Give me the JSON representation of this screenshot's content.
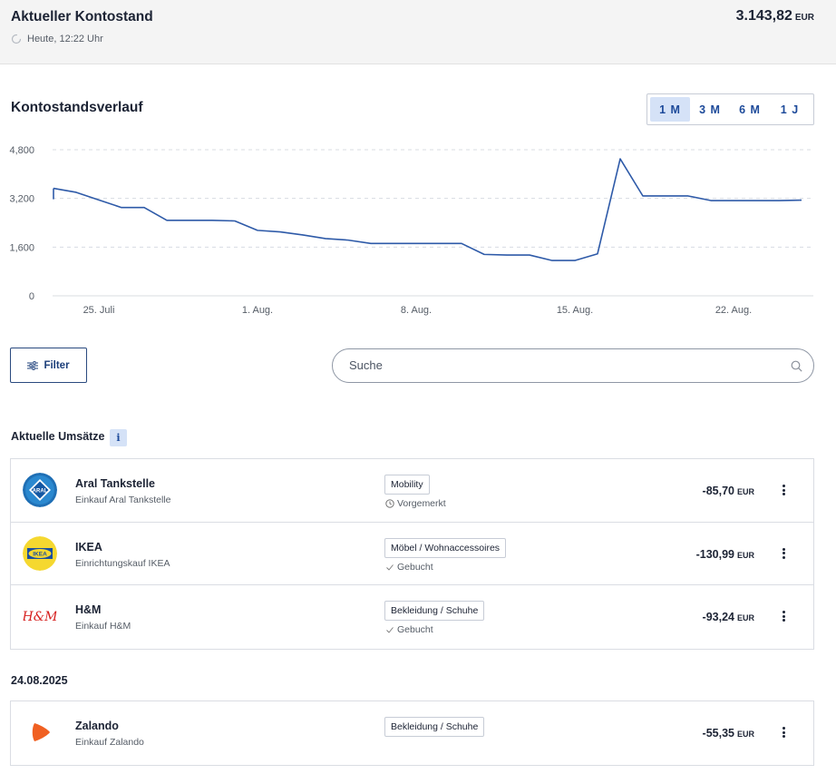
{
  "balance": {
    "title": "Aktueller Kontostand",
    "timestamp": "Heute, 12:22 Uhr",
    "amount": "3.143,82",
    "currency": "EUR"
  },
  "chart_section": {
    "title": "Kontostandsverlauf",
    "ranges": [
      {
        "label": "1 M",
        "active": true
      },
      {
        "label": "3 M",
        "active": false
      },
      {
        "label": "6 M",
        "active": false
      },
      {
        "label": "1 J",
        "active": false
      }
    ]
  },
  "chart_data": {
    "type": "line",
    "x": [
      "23. Juli",
      "24. Juli",
      "25. Juli",
      "26. Juli",
      "27. Juli",
      "28. Juli",
      "29. Juli",
      "30. Juli",
      "31. Juli",
      "1. Aug.",
      "2. Aug.",
      "3. Aug.",
      "4. Aug.",
      "5. Aug.",
      "6. Aug.",
      "7. Aug.",
      "8. Aug.",
      "9. Aug.",
      "10. Aug.",
      "11. Aug.",
      "12. Aug.",
      "13. Aug.",
      "14. Aug.",
      "15. Aug.",
      "16. Aug.",
      "17. Aug.",
      "18. Aug.",
      "19. Aug.",
      "20. Aug.",
      "21. Aug.",
      "22. Aug.",
      "23. Aug.",
      "24. Aug.",
      "25. Aug."
    ],
    "series": [
      {
        "values": [
          3530,
          3400,
          3150,
          2900,
          2900,
          2480,
          2480,
          2480,
          2460,
          2150,
          2100,
          2000,
          1880,
          1830,
          1720,
          1720,
          1720,
          1720,
          1720,
          1360,
          1340,
          1340,
          1160,
          1160,
          1380,
          4500,
          3280,
          3280,
          3280,
          3130,
          3130,
          3130,
          3130,
          3143.82
        ],
        "color": "#2e5aa8"
      }
    ],
    "y_ticks": [
      "0",
      "1,600",
      "3,200",
      "4,800"
    ],
    "x_ticks": [
      "25. Juli",
      "1. Aug.",
      "8. Aug.",
      "15. Aug.",
      "22. Aug."
    ],
    "ylim": [
      0,
      4800
    ],
    "grid": "horizontal dashed"
  },
  "filter": {
    "label": "Filter"
  },
  "search": {
    "placeholder": "Suche"
  },
  "current": {
    "title": "Aktuelle Umsätze",
    "info": "i",
    "items": [
      {
        "logo": "aral-logo",
        "name": "Aral Tankstelle",
        "sub": "Einkauf Aral Tankstelle",
        "category": "Mobility",
        "status": "Vorgemerkt",
        "status_icon": "clock-icon",
        "amount": "-85,70",
        "currency": "EUR"
      },
      {
        "logo": "ikea-logo",
        "name": "IKEA",
        "sub": "Einrichtungskauf IKEA",
        "category": "Möbel / Wohnaccessoires",
        "status": "Gebucht",
        "status_icon": "check-icon",
        "amount": "-130,99",
        "currency": "EUR"
      },
      {
        "logo": "hm-logo",
        "name": "H&M",
        "sub": "Einkauf H&M",
        "category": "Bekleidung / Schuhe",
        "status": "Gebucht",
        "status_icon": "check-icon",
        "amount": "-93,24",
        "currency": "EUR"
      }
    ]
  },
  "dated": {
    "date": "24.08.2025",
    "items": [
      {
        "logo": "zalando-logo",
        "name": "Zalando",
        "sub": "Einkauf Zalando",
        "category": "Bekleidung / Schuhe",
        "amount": "-55,35",
        "currency": "EUR"
      }
    ]
  },
  "logo_text": {
    "aral": "ARAL",
    "ikea": "IKEA",
    "hm": "H&M"
  }
}
